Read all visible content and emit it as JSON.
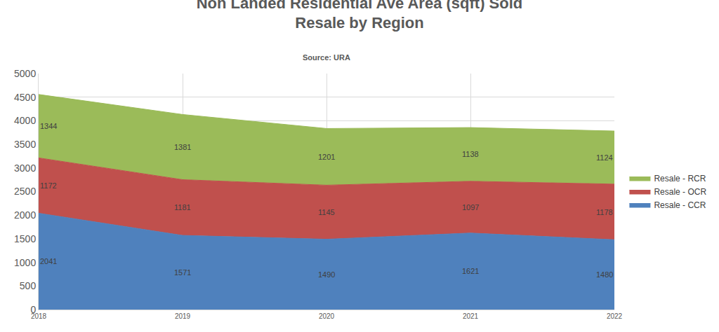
{
  "chart_data": {
    "type": "area",
    "title": "Non Landed Residential Ave Area (sqft) Sold",
    "subtitle": "Resale by Region",
    "annotations": [
      "Source: URA"
    ],
    "categories": [
      "2018",
      "2019",
      "2020",
      "2021",
      "2022"
    ],
    "series": [
      {
        "name": "Resale - CCR",
        "color": "#4f81bd",
        "values": [
          2041,
          1571,
          1490,
          1621,
          1480
        ]
      },
      {
        "name": "Resale - OCR",
        "color": "#c0504d",
        "values": [
          1172,
          1181,
          1145,
          1097,
          1178
        ]
      },
      {
        "name": "Resale - RCR",
        "color": "#9bbb59",
        "values": [
          1344,
          1381,
          1201,
          1138,
          1124
        ]
      }
    ],
    "ylim": [
      0,
      5000
    ],
    "yticks": [
      0,
      500,
      1000,
      1500,
      2000,
      2500,
      3000,
      3500,
      4000,
      4500,
      5000
    ],
    "stacked": true,
    "data_labels": true,
    "grid": true,
    "legend": "right"
  }
}
